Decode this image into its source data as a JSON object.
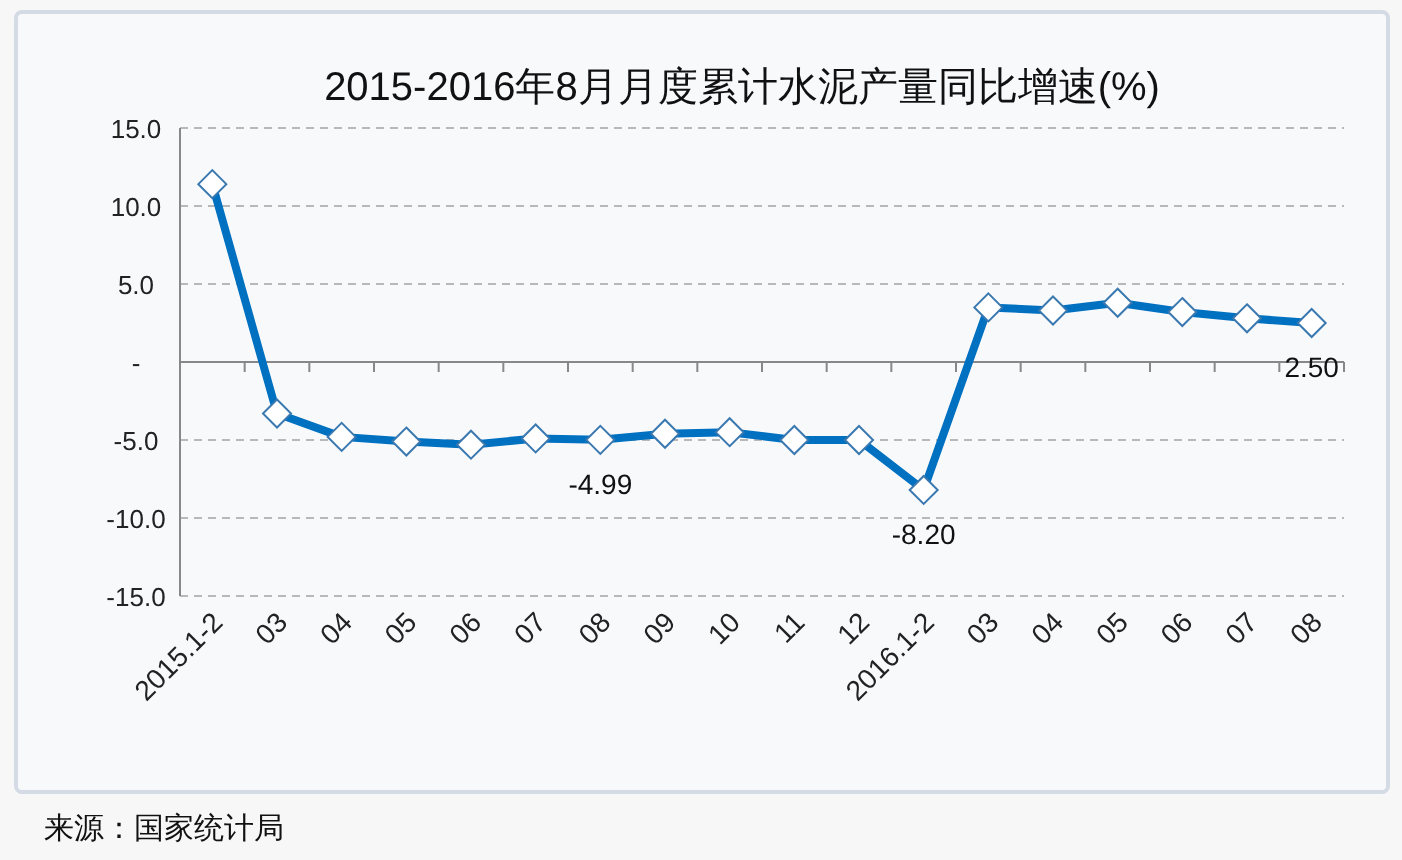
{
  "chart_data": {
    "type": "line",
    "title": "2015-2016年8月月度累计水泥产量同比增速(%)",
    "categories": [
      "2015.1-2",
      "03",
      "04",
      "05",
      "06",
      "07",
      "08",
      "09",
      "10",
      "11",
      "12",
      "2016.1-2",
      "03",
      "04",
      "05",
      "06",
      "07",
      "08"
    ],
    "values": [
      11.4,
      -3.3,
      -4.8,
      -5.1,
      -5.3,
      -4.9,
      -4.99,
      -4.6,
      -4.5,
      -5.0,
      -5.0,
      -8.2,
      3.5,
      3.3,
      3.8,
      3.2,
      2.8,
      2.5
    ],
    "value_labels": [
      null,
      null,
      null,
      null,
      null,
      null,
      "-4.99",
      null,
      null,
      null,
      null,
      "-8.20",
      null,
      null,
      null,
      null,
      null,
      "2.50"
    ],
    "color": "#0070c0",
    "ylim": [
      -15,
      15
    ],
    "yticks": [
      {
        "value": 15,
        "label": "15.0"
      },
      {
        "value": 10,
        "label": "10.0"
      },
      {
        "value": 5,
        "label": "5.0"
      },
      {
        "value": 0,
        "label": "-"
      },
      {
        "value": -5,
        "label": "-5.0"
      },
      {
        "value": -10,
        "label": "-10.0"
      },
      {
        "value": -15,
        "label": "-15.0"
      }
    ],
    "grid": "y",
    "marker": "diamond",
    "annotations": [
      "来源：国家统计局"
    ]
  }
}
